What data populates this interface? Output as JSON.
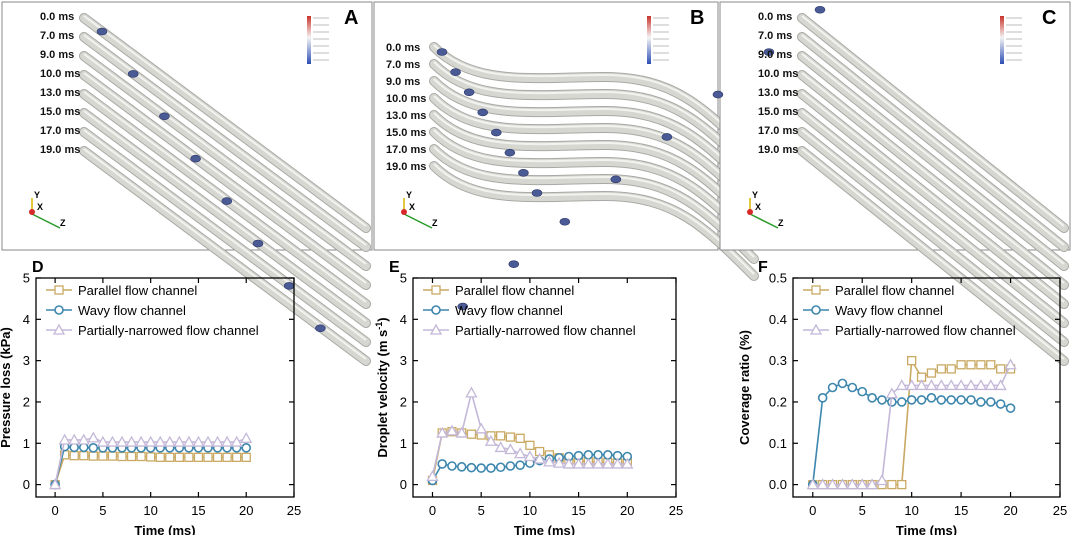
{
  "sim_panels": [
    {
      "letter": "A",
      "times": [
        "0.0 ms",
        "7.0 ms",
        "9.0 ms",
        "10.0 ms",
        "13.0 ms",
        "15.0 ms",
        "17.0 ms",
        "19.0 ms"
      ],
      "shape": "parallel",
      "axes": {
        "y": "Y",
        "x": "X",
        "z": "Z"
      }
    },
    {
      "letter": "B",
      "times": [
        "0.0 ms",
        "7.0 ms",
        "9.0 ms",
        "10.0 ms",
        "13.0 ms",
        "15.0 ms",
        "17.0 ms",
        "19.0 ms"
      ],
      "shape": "wavy",
      "axes": {
        "y": "Y",
        "x": "X",
        "z": "Z"
      }
    },
    {
      "letter": "C",
      "times": [
        "0.0 ms",
        "7.0 ms",
        "9.0 ms",
        "10.0 ms",
        "13.0 ms",
        "15.0 ms",
        "17.0 ms",
        "19.0 ms"
      ],
      "shape": "narrowed",
      "axes": {
        "y": "Y",
        "x": "X",
        "z": "Z"
      }
    }
  ],
  "colors": {
    "parallel": "#c9a963",
    "wavy": "#3d86ad",
    "narrowed": "#c4b8d8",
    "channel": "#d7d7d2",
    "droplet": "#4a5a94",
    "panel_border": "#888888"
  },
  "legend_labels": [
    "Parallel flow channel",
    "Wavy flow channel",
    "Partially-narrowed flow channel"
  ],
  "chart_data": [
    {
      "letter": "D",
      "type": "line",
      "title": "",
      "xlabel": "Time (ms)",
      "ylabel": "Pressure loss (kPa)",
      "xlim": [
        -2,
        25
      ],
      "ylim": [
        -0.3,
        5
      ],
      "xticks": [
        0,
        5,
        10,
        15,
        20,
        25
      ],
      "yticks": [
        0,
        1,
        2,
        3,
        4,
        5
      ],
      "legend": "top-left",
      "series": [
        {
          "name": "Parallel flow channel",
          "marker": "square",
          "x": [
            0,
            1,
            2,
            3,
            4,
            5,
            6,
            7,
            8,
            9,
            10,
            11,
            12,
            13,
            14,
            15,
            16,
            17,
            18,
            19,
            20
          ],
          "y": [
            0,
            0.72,
            0.7,
            0.7,
            0.69,
            0.69,
            0.69,
            0.68,
            0.68,
            0.68,
            0.67,
            0.66,
            0.66,
            0.66,
            0.66,
            0.66,
            0.66,
            0.66,
            0.66,
            0.66,
            0.66
          ]
        },
        {
          "name": "Wavy flow channel",
          "marker": "circle",
          "x": [
            0,
            1,
            2,
            3,
            4,
            5,
            6,
            7,
            8,
            9,
            10,
            11,
            12,
            13,
            14,
            15,
            16,
            17,
            18,
            19,
            20
          ],
          "y": [
            0,
            0.92,
            0.9,
            0.9,
            0.89,
            0.89,
            0.89,
            0.89,
            0.89,
            0.89,
            0.89,
            0.89,
            0.89,
            0.89,
            0.89,
            0.89,
            0.89,
            0.89,
            0.89,
            0.89,
            0.89
          ]
        },
        {
          "name": "Partially-narrowed flow channel",
          "marker": "triangle",
          "x": [
            0,
            1,
            2,
            3,
            4,
            5,
            6,
            7,
            8,
            9,
            10,
            11,
            12,
            13,
            14,
            15,
            16,
            17,
            18,
            19,
            20
          ],
          "y": [
            0,
            1.08,
            1.08,
            1.08,
            1.13,
            1.03,
            1.03,
            1.03,
            1.03,
            1.03,
            1.03,
            1.03,
            1.03,
            1.03,
            1.03,
            1.03,
            1.03,
            1.03,
            1.03,
            1.03,
            1.12
          ]
        }
      ]
    },
    {
      "letter": "E",
      "type": "line",
      "title": "",
      "xlabel": "Time (ms)",
      "ylabel": "Droplet velocity (m s",
      "ylabel_sup": "-1",
      "ylabel_end": ")",
      "xlim": [
        -2,
        25
      ],
      "ylim": [
        -0.3,
        5
      ],
      "xticks": [
        0,
        5,
        10,
        15,
        20,
        25
      ],
      "yticks": [
        0,
        1,
        2,
        3,
        4,
        5
      ],
      "legend": "top-left",
      "series": [
        {
          "name": "Parallel flow channel",
          "marker": "square",
          "x": [
            0,
            1,
            2,
            3,
            4,
            5,
            6,
            7,
            8,
            9,
            10,
            11,
            12,
            13,
            14,
            15,
            16,
            17,
            18,
            19,
            20
          ],
          "y": [
            0.1,
            1.25,
            1.28,
            1.25,
            1.22,
            1.2,
            1.18,
            1.18,
            1.15,
            1.12,
            0.95,
            0.8,
            0.72,
            0.65,
            0.6,
            0.58,
            0.55,
            0.55,
            0.53,
            0.52,
            0.52
          ]
        },
        {
          "name": "Wavy flow channel",
          "marker": "circle",
          "x": [
            0,
            1,
            2,
            3,
            4,
            5,
            6,
            7,
            8,
            9,
            10,
            11,
            12,
            13,
            14,
            15,
            16,
            17,
            18,
            19,
            20
          ],
          "y": [
            0.1,
            0.5,
            0.45,
            0.43,
            0.41,
            0.4,
            0.4,
            0.42,
            0.45,
            0.47,
            0.52,
            0.58,
            0.62,
            0.65,
            0.68,
            0.7,
            0.72,
            0.72,
            0.72,
            0.7,
            0.68
          ]
        },
        {
          "name": "Partially-narrowed flow channel",
          "marker": "triangle",
          "x": [
            0,
            1,
            2,
            3,
            4,
            5,
            6,
            7,
            8,
            9,
            10,
            11,
            12,
            13,
            14,
            15,
            16,
            17,
            18,
            19,
            20
          ],
          "y": [
            0.2,
            1.25,
            1.3,
            1.25,
            2.22,
            1.35,
            1.05,
            0.9,
            0.85,
            0.75,
            0.68,
            0.62,
            0.55,
            0.52,
            0.5,
            0.5,
            0.5,
            0.5,
            0.5,
            0.5,
            0.5
          ]
        }
      ]
    },
    {
      "letter": "F",
      "type": "line",
      "title": "",
      "xlabel": "Time (ms)",
      "ylabel": "Coverage ratio (%)",
      "xlim": [
        -2,
        25
      ],
      "ylim": [
        -0.03,
        0.5
      ],
      "xticks": [
        0,
        5,
        10,
        15,
        20,
        25
      ],
      "yticks": [
        0.0,
        0.1,
        0.2,
        0.3,
        0.4,
        0.5
      ],
      "ytick_labels": [
        "0.0",
        "0.1",
        "0.2",
        "0.3",
        "0.4",
        "0.5"
      ],
      "legend": "top-left",
      "series": [
        {
          "name": "Parallel flow channel",
          "marker": "square",
          "x": [
            0,
            1,
            2,
            3,
            4,
            5,
            6,
            7,
            8,
            9,
            10,
            11,
            12,
            13,
            14,
            15,
            16,
            17,
            18,
            19,
            20
          ],
          "y": [
            0,
            0,
            0,
            0,
            0,
            0,
            0,
            0,
            0,
            0,
            0.3,
            0.26,
            0.27,
            0.28,
            0.28,
            0.29,
            0.29,
            0.29,
            0.29,
            0.28,
            0.28
          ]
        },
        {
          "name": "Wavy flow channel",
          "marker": "circle",
          "x": [
            0,
            1,
            2,
            3,
            4,
            5,
            6,
            7,
            8,
            9,
            10,
            11,
            12,
            13,
            14,
            15,
            16,
            17,
            18,
            19,
            20
          ],
          "y": [
            0,
            0.21,
            0.235,
            0.245,
            0.235,
            0.225,
            0.21,
            0.205,
            0.2,
            0.2,
            0.205,
            0.205,
            0.21,
            0.205,
            0.205,
            0.205,
            0.205,
            0.2,
            0.2,
            0.195,
            0.185
          ]
        },
        {
          "name": "Partially-narrowed flow channel",
          "marker": "triangle",
          "x": [
            0,
            1,
            2,
            3,
            4,
            5,
            6,
            7,
            8,
            9,
            10,
            11,
            12,
            13,
            14,
            15,
            16,
            17,
            18,
            19,
            20
          ],
          "y": [
            0,
            0,
            0,
            0,
            0,
            0,
            0,
            0.01,
            0.22,
            0.24,
            0.24,
            0.24,
            0.24,
            0.24,
            0.24,
            0.24,
            0.24,
            0.24,
            0.24,
            0.24,
            0.29
          ]
        }
      ]
    }
  ]
}
